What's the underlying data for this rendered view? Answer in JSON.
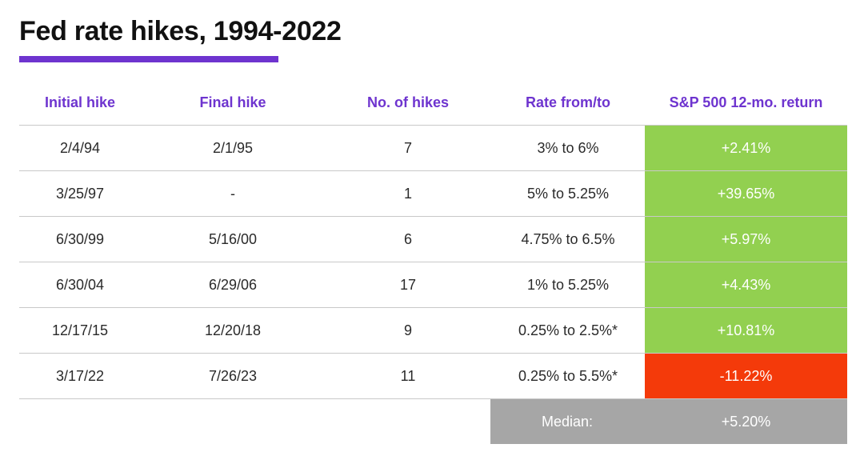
{
  "title": "Fed rate hikes, 1994-2022",
  "colors": {
    "accent": "#6e34cf",
    "positive": "#92d050",
    "negative": "#f43a0a",
    "median": "#a6a6a6"
  },
  "chart_data": {
    "type": "table",
    "title": "Fed rate hikes, 1994-2022",
    "columns": [
      "Initial hike",
      "Final hike",
      "No. of hikes",
      "Rate from/to",
      "S&P 500 12-mo. return"
    ],
    "rows": [
      {
        "initial": "2/4/94",
        "final": "2/1/95",
        "hikes": "7",
        "rate": "3% to 6%",
        "return": "+2.41%",
        "return_value": 2.41
      },
      {
        "initial": "3/25/97",
        "final": "-",
        "hikes": "1",
        "rate": "5% to 5.25%",
        "return": "+39.65%",
        "return_value": 39.65
      },
      {
        "initial": "6/30/99",
        "final": "5/16/00",
        "hikes": "6",
        "rate": "4.75% to 6.5%",
        "return": "+5.97%",
        "return_value": 5.97
      },
      {
        "initial": "6/30/04",
        "final": "6/29/06",
        "hikes": "17",
        "rate": "1% to 5.25%",
        "return": "+4.43%",
        "return_value": 4.43
      },
      {
        "initial": "12/17/15",
        "final": "12/20/18",
        "hikes": "9",
        "rate": "0.25% to 2.5%*",
        "return": "+10.81%",
        "return_value": 10.81
      },
      {
        "initial": "3/17/22",
        "final": "7/26/23",
        "hikes": "11",
        "rate": "0.25% to 5.5%*",
        "return": "-11.22%",
        "return_value": -11.22
      }
    ],
    "median": {
      "label": "Median:",
      "value": "+5.20%"
    }
  }
}
